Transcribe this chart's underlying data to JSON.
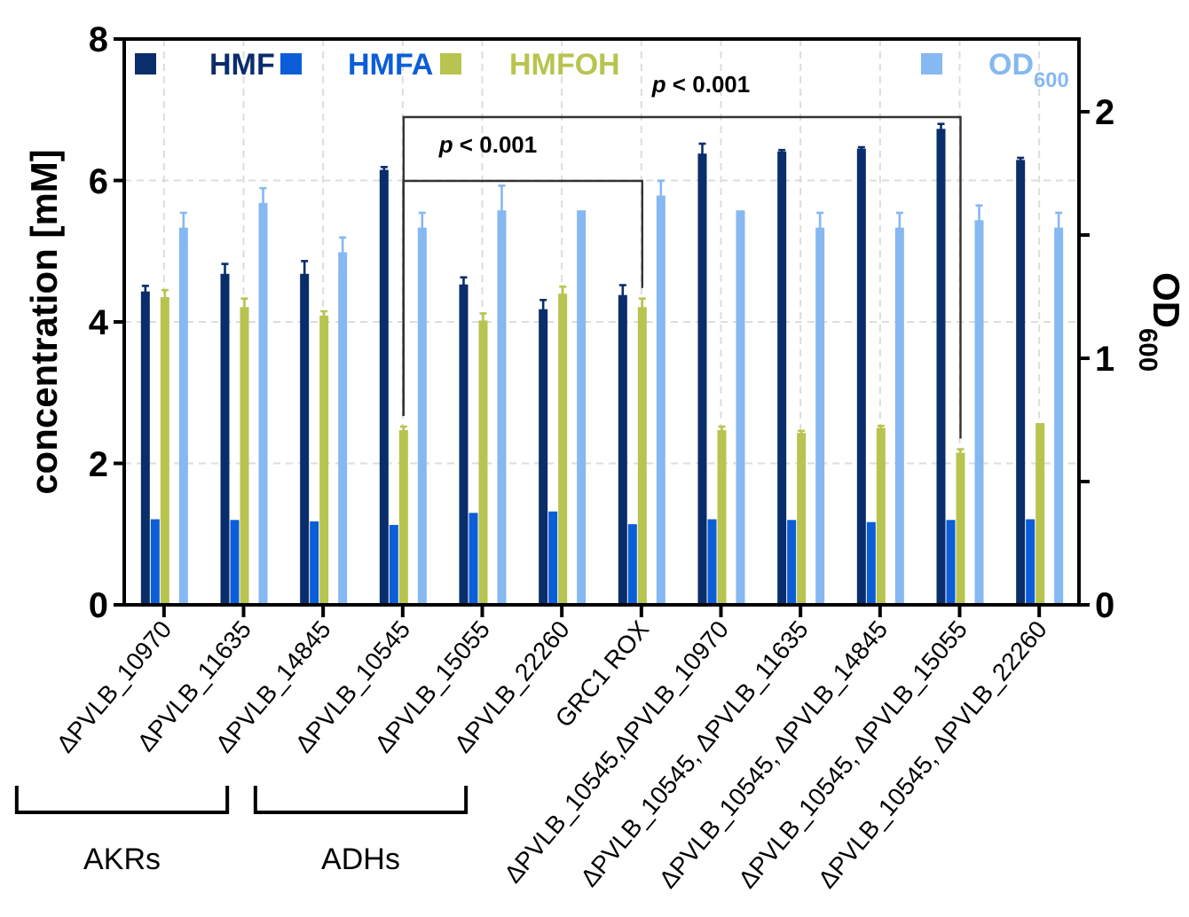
{
  "chart_data": {
    "type": "bar",
    "ylabel": "concentration [mM]",
    "y2label": "OD$_{600}$",
    "categories": [
      "ΔPVLB_10970",
      "ΔPVLB_11635",
      "ΔPVLB_14845",
      "ΔPVLB_10545",
      "ΔPVLB_15055",
      "ΔPVLB_22260",
      "GRC1 ROX",
      "ΔPVLB_10545,ΔPVLB_10970",
      "ΔPVLB_10545, ΔPVLB_11635",
      "ΔPVLB_10545, ΔPVLB_14845",
      "ΔPVLB_10545, ΔPVLB_15055",
      "ΔPVLB_10545, ΔPVLB_22260"
    ],
    "series": [
      {
        "name": "HMF",
        "color": "#0a2d6b",
        "values": [
          4.43,
          4.68,
          4.68,
          6.15,
          4.53,
          4.18,
          4.38,
          6.38,
          6.41,
          6.45,
          6.73,
          6.29
        ],
        "errors": [
          0.08,
          0.14,
          0.18,
          0.04,
          0.1,
          0.13,
          0.14,
          0.14,
          0.02,
          0.02,
          0.07,
          0.03
        ]
      },
      {
        "name": "HMFA",
        "color": "#0b5ed7",
        "values": [
          1.21,
          1.2,
          1.18,
          1.13,
          1.3,
          1.32,
          1.14,
          1.21,
          1.2,
          1.17,
          1.2,
          1.21
        ]
      },
      {
        "name": "HMFOH",
        "color": "#b8c44f",
        "values": [
          4.35,
          4.21,
          4.09,
          2.47,
          4.02,
          4.4,
          4.21,
          2.47,
          2.43,
          2.5,
          2.15,
          2.57
        ],
        "errors": [
          0.1,
          0.12,
          0.06,
          0.05,
          0.1,
          0.1,
          0.12,
          0.05,
          0.03,
          0.03,
          0.05,
          null
        ]
      },
      {
        "name": "OD$_{600}$",
        "color": "#86b8f2",
        "axis": "y2",
        "values": [
          1.53,
          1.63,
          1.43,
          1.53,
          1.6,
          1.6,
          1.66,
          1.6,
          1.53,
          1.53,
          1.56,
          1.53
        ],
        "errors": [
          0.06,
          0.06,
          0.06,
          0.06,
          0.1,
          null,
          0.06,
          null,
          0.06,
          0.06,
          0.06,
          0.06
        ]
      }
    ],
    "ylim": [
      0,
      8
    ],
    "yticks": [
      0,
      2,
      4,
      6,
      8
    ],
    "y2lim": [
      0,
      2.295
    ],
    "y2ticks": [
      0,
      {
        "value": 0.5,
        "label": null
      },
      1,
      {
        "value": 1.5,
        "label": null
      },
      2
    ],
    "grid": true,
    "legend": "top",
    "annotations": [
      "p < 0.001",
      "p < 0.001",
      "AKRs",
      "ADHs"
    ]
  }
}
